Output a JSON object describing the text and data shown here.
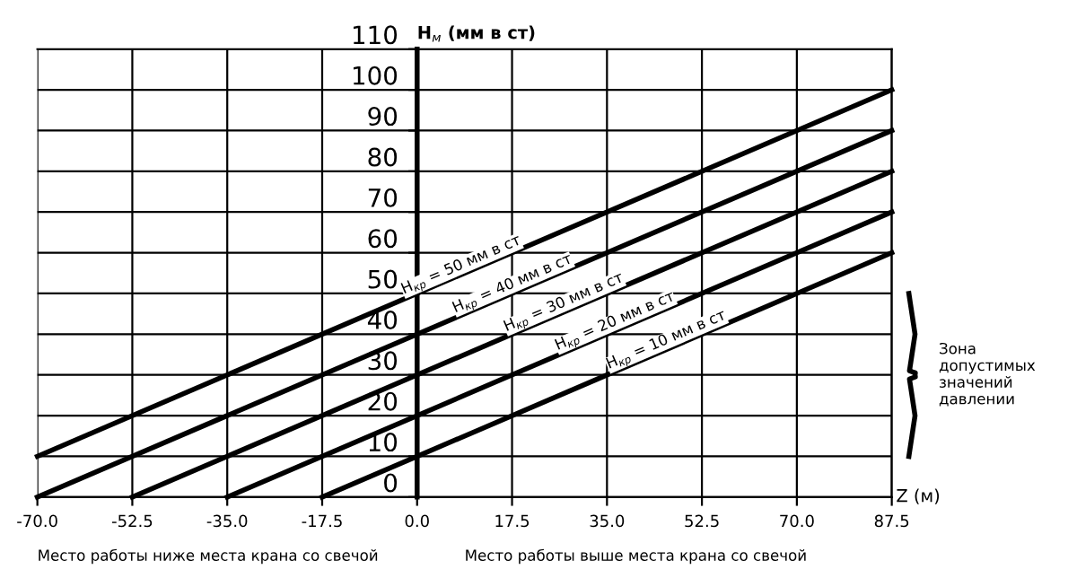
{
  "chart_data": {
    "type": "line",
    "ylabel": "H$_{м}$ (мм в ст)",
    "xlabel": "Z (м)",
    "series": [
      {
        "name": "H$_{кр}$ = 50 мм в ст",
        "color": "#000000",
        "x": [
          -70.0,
          87.5
        ],
        "values": [
          10,
          100
        ]
      },
      {
        "name": "H$_{кр}$ = 40 мм в ст",
        "color": "#000000",
        "x": [
          -70.0,
          87.5
        ],
        "values": [
          0,
          90
        ]
      },
      {
        "name": "H$_{кр}$ = 30 мм в ст",
        "color": "#000000",
        "x": [
          -52.5,
          87.5
        ],
        "values": [
          0,
          80
        ]
      },
      {
        "name": "H$_{кр}$ = 20 мм в ст",
        "color": "#000000",
        "x": [
          -35.0,
          87.5
        ],
        "values": [
          0,
          70
        ]
      },
      {
        "name": "H$_{кр}$ = 10 мм в ст",
        "color": "#000000",
        "x": [
          -17.5,
          87.5
        ],
        "values": [
          0,
          60
        ]
      }
    ],
    "xlim": [
      -70.0,
      87.5
    ],
    "ylim": [
      0,
      110
    ],
    "xticks": [
      {
        "value": -70.0,
        "label": "-70.0"
      },
      {
        "value": -52.5,
        "label": "-52.5"
      },
      {
        "value": -35.0,
        "label": "-35.0"
      },
      {
        "value": -17.5,
        "label": "-17.5"
      },
      {
        "value": 0,
        "label": "0.0"
      },
      {
        "value": 17.5,
        "label": "17.5"
      },
      {
        "value": 35.0,
        "label": "35.0"
      },
      {
        "value": 52.5,
        "label": "52.5"
      },
      {
        "value": 70.0,
        "label": "70.0"
      },
      {
        "value": 87.5,
        "label": "87.5"
      }
    ],
    "yticks": [
      0,
      10,
      20,
      30,
      40,
      50,
      60,
      70,
      80,
      90,
      100,
      110
    ],
    "grid": true,
    "legend": false,
    "marker": "none",
    "line_style": "solid",
    "annotations": [
      "Место работы ниже места крана со свечой",
      "Место работы выше места крана со свечой",
      "Зона\nдопустимых\nзначений\nдавлении"
    ]
  }
}
